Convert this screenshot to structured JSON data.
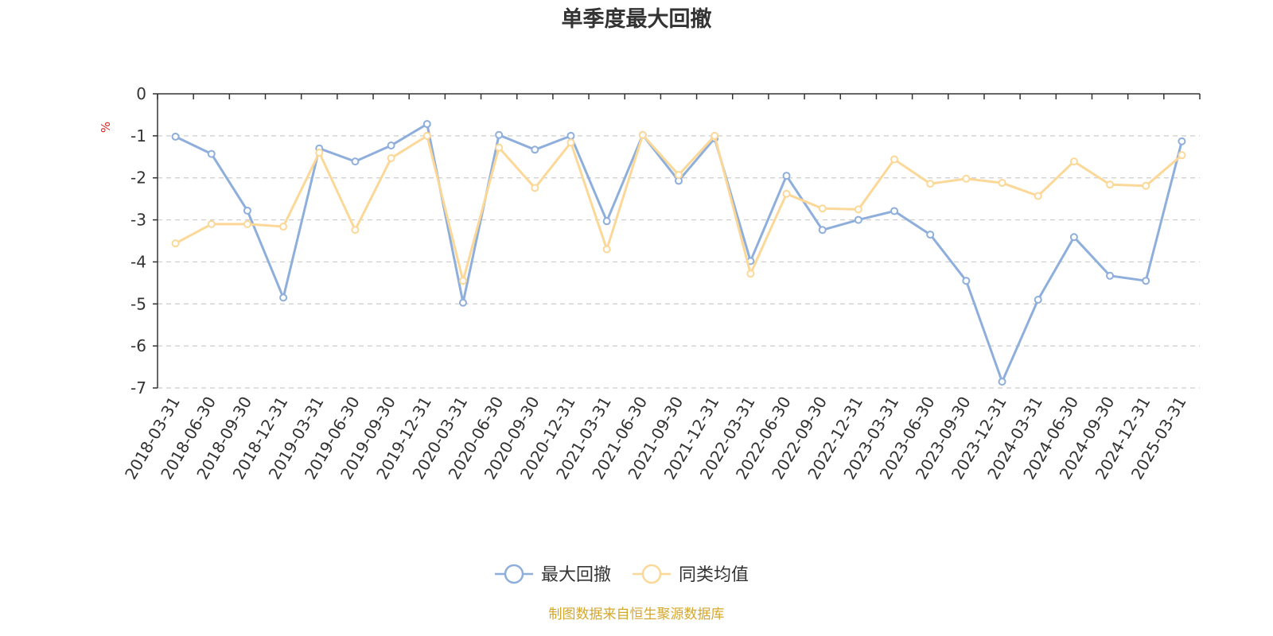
{
  "chart_data": {
    "type": "line",
    "title": "单季度最大回撤",
    "ylabel": "%",
    "ylim": [
      -7,
      0
    ],
    "yticks": [
      "0",
      "-1",
      "-2",
      "-3",
      "-4",
      "-5",
      "-6",
      "-7"
    ],
    "grid": true,
    "legend_position": "bottom-center",
    "categories": [
      "2018-03-31",
      "2018-06-30",
      "2018-09-30",
      "2018-12-31",
      "2019-03-31",
      "2019-06-30",
      "2019-09-30",
      "2019-12-31",
      "2020-03-31",
      "2020-06-30",
      "2020-09-30",
      "2020-12-31",
      "2021-03-31",
      "2021-06-30",
      "2021-09-30",
      "2021-12-31",
      "2022-03-31",
      "2022-06-30",
      "2022-09-30",
      "2022-12-31",
      "2023-03-31",
      "2023-06-30",
      "2023-09-30",
      "2023-12-31",
      "2024-03-31",
      "2024-06-30",
      "2024-09-30",
      "2024-12-31",
      "2025-03-31"
    ],
    "series": [
      {
        "name": "最大回撤",
        "color": "#8eaedc",
        "values": [
          -1.02,
          -1.43,
          -2.78,
          -4.85,
          -1.3,
          -1.61,
          -1.23,
          -0.72,
          -4.97,
          -0.98,
          -1.33,
          -1.0,
          -3.03,
          -0.98,
          -2.07,
          -1.06,
          -3.98,
          -1.95,
          -3.24,
          -3.0,
          -2.79,
          -3.35,
          -4.45,
          -6.85,
          -4.9,
          -3.41,
          -4.33,
          -4.45,
          -1.13
        ]
      },
      {
        "name": "同类均值",
        "color": "#fcd898",
        "values": [
          -3.56,
          -3.1,
          -3.1,
          -3.16,
          -1.4,
          -3.24,
          -1.53,
          -1.0,
          -4.45,
          -1.28,
          -2.24,
          -1.16,
          -3.7,
          -0.98,
          -1.93,
          -1.0,
          -4.28,
          -2.38,
          -2.73,
          -2.75,
          -1.56,
          -2.14,
          -2.02,
          -2.12,
          -2.43,
          -1.61,
          -2.16,
          -2.19,
          -1.46
        ]
      }
    ]
  },
  "source_note": "制图数据来自恒生聚源数据库"
}
